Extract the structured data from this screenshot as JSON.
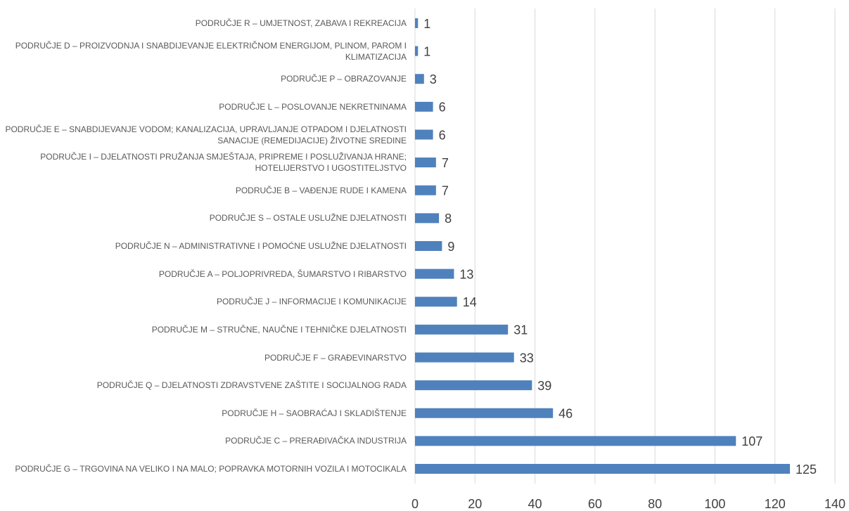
{
  "chart_data": {
    "type": "barh",
    "categories": [
      "PODRUČJE R – UMJETNOST, ZABAVA I REKREACIJA",
      "PODRUČJE D – PROIZVODNJA I SNABDIJEVANJE ELEKTRIČNOM ENERGIJOM, PLINOM, PAROM I KLIMATIZACIJA",
      "PODRUČJE P – OBRAZOVANJE",
      "PODRUČJE L – POSLOVANJE NEKRETNINAMA",
      "PODRUČJE E – SNABDIJEVANJE VODOM; KANALIZACIJA, UPRAVLJANJE OTPADOM I DJELATNOSTI SANACIJE (REMEDIJACIJE) ŽIVOTNE SREDINE",
      "PODRUČJE I – DJELATNOSTI PRUŽANJA SMJEŠTAJA, PRIPREME I POSLUŽIVANJA HRANE; HOTELIJERSTVO I UGOSTITELJSTVO",
      "PODRUČJE B – VAĐENJE RUDE I KAMENA",
      "PODRUČJE S – OSTALE USLUŽNE DJELATNOSTI",
      "PODRUČJE N – ADMINISTRATIVNE I POMOĆNE USLUŽNE DJELATNOSTI",
      "PODRUČJE A – POLJOPRIVREDA,  ŠUMARSTVO I RIBARSTVO",
      "PODRUČJE J – INFORMACIJE I KOMUNIKACIJE",
      "PODRUČJE M – STRUČNE, NAUČNE I TEHNIČKE DJELATNOSTI",
      "PODRUČJE F – GRAĐEVINARSTVO",
      "PODRUČJE Q – DJELATNOSTI ZDRAVSTVENE ZAŠTITE I SOCIJALNOG RADA",
      "PODRUČJE H – SAOBRAĆAJ I SKLADIŠTENJE",
      "PODRUČJE C – PRERAĐIVAČKA INDUSTRIJA",
      "PODRUČJE G – TRGOVINA NA VELIKO I NA MALO; POPRAVKA MOTORNIH VOZILA I MOTOCIKALA"
    ],
    "values": [
      1,
      1,
      3,
      6,
      6,
      7,
      7,
      8,
      9,
      13,
      14,
      31,
      33,
      39,
      46,
      107,
      125
    ],
    "color": "#4f81bd",
    "xlim": [
      0,
      140
    ],
    "xticks": [
      0,
      20,
      40,
      60,
      80,
      100,
      120,
      140
    ],
    "grid": true
  }
}
